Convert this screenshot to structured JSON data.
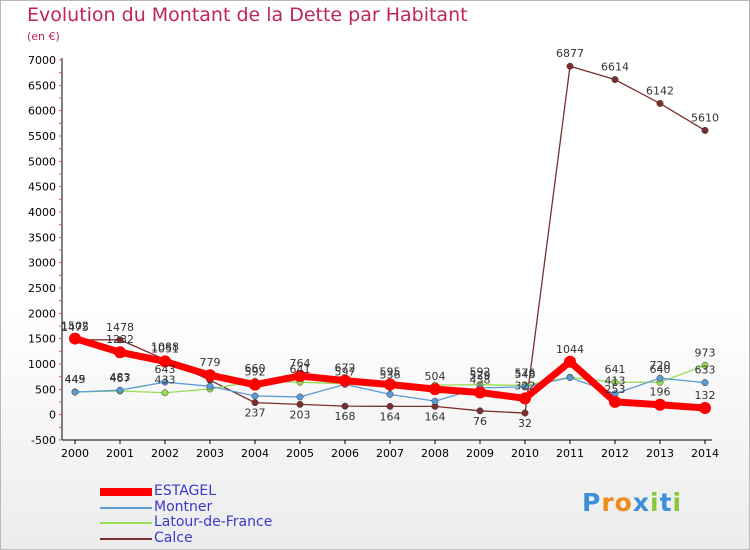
{
  "header": {
    "title": "Evolution du Montant de la Dette par Habitant",
    "subtitle": "(en €)"
  },
  "colors": {
    "title": "#c0245c",
    "axis_text": "#000000",
    "legend_text": "#3a3ac8"
  },
  "chart_data": {
    "type": "line",
    "title": "Evolution du Montant de la Dette par Habitant",
    "subtitle": "(en €)",
    "xlabel": "",
    "ylabel": "",
    "x": [
      "2000",
      "2001",
      "2002",
      "2003",
      "2004",
      "2005",
      "2006",
      "2007",
      "2008",
      "2009",
      "2010",
      "2011",
      "2012",
      "2013",
      "2014"
    ],
    "ylim": [
      -500,
      7000
    ],
    "yticks": [
      -500,
      0,
      500,
      1000,
      1500,
      2000,
      2500,
      3000,
      3500,
      4000,
      4500,
      5000,
      5500,
      6000,
      6500,
      7000
    ],
    "grid": false,
    "legend_placement": "bottom-left",
    "series": [
      {
        "name": "ESTAGEL",
        "color": "#ff0000",
        "values": [
          1502,
          1232,
          1051,
          779,
          592,
          764,
          672,
          595,
          504,
          438,
          322,
          1044,
          253,
          196,
          132
        ],
        "labels": [
          "1502",
          "1232",
          "1051",
          "779",
          "592",
          "764",
          "672",
          "595",
          "504",
          "438",
          "322",
          "1044",
          "253",
          "196",
          "132"
        ]
      },
      {
        "name": "Montner",
        "color": "#5b9bd5",
        "values": [
          445,
          483,
          643,
          560,
          368,
          350,
          597,
          401,
          267,
          529,
          548,
          733,
          413,
          720,
          633
        ],
        "labels": [
          "445",
          "483",
          "643",
          "",
          "",
          "",
          "597",
          "",
          "",
          "529",
          "548",
          "",
          "413",
          "720",
          "633"
        ]
      },
      {
        "name": "Latour-de-France",
        "color": "#99dd55",
        "values": [
          449,
          467,
          433,
          508,
          660,
          641,
          609,
          536,
          583,
          592,
          576,
          738,
          641,
          640,
          973
        ],
        "labels": [
          "449",
          "467",
          "433",
          "",
          "660",
          "641",
          "",
          "536",
          "",
          "592",
          "576",
          "",
          "641",
          "640",
          "973"
        ]
      },
      {
        "name": "Calce",
        "color": "#7b2e2e",
        "values": [
          1475,
          1478,
          1088,
          680,
          237,
          203,
          168,
          164,
          164,
          76,
          32,
          6877,
          6614,
          6142,
          5610
        ],
        "labels": [
          "1475",
          "1478",
          "1088",
          "",
          "237",
          "203",
          "168",
          "164",
          "164",
          "76",
          "32",
          "6877",
          "6614",
          "6142",
          "5610"
        ]
      }
    ]
  },
  "legend": {
    "items": [
      {
        "label": "ESTAGEL",
        "color": "#ff0000"
      },
      {
        "label": "Montner",
        "color": "#5b9bd5"
      },
      {
        "label": "Latour-de-France",
        "color": "#99dd55"
      },
      {
        "label": "Calce",
        "color": "#7b2e2e"
      }
    ]
  },
  "logo": {
    "letters": [
      "P",
      "r",
      "o",
      "x",
      "i",
      "t",
      "i"
    ],
    "colors": [
      "#3f8fd8",
      "#f08a1c",
      "#f08a1c",
      "#3f8fd8",
      "#8bc63e",
      "#3f8fd8",
      "#8bc63e"
    ]
  }
}
